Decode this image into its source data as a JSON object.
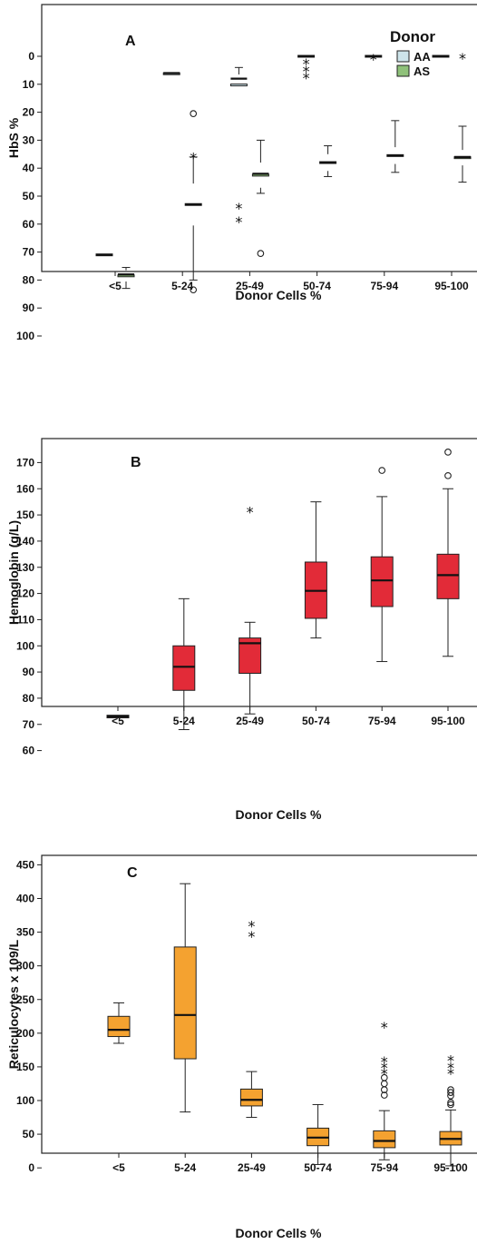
{
  "chart_data": [
    {
      "panel": "A",
      "type": "boxplot",
      "xlabel": "Donor Cells %",
      "ylabel": "HbS %",
      "ylim": [
        0,
        100
      ],
      "yticks": [
        0,
        10,
        20,
        30,
        40,
        50,
        60,
        70,
        80,
        90,
        100
      ],
      "categories": [
        "<5",
        "5-24",
        "25-49",
        "50-74",
        "75-94",
        "95-100"
      ],
      "legend": {
        "title": "Donor",
        "placement": "top-right"
      },
      "series": [
        {
          "name": "AA",
          "color": "#cde4ea",
          "boxes": [
            {
              "category": "<5",
              "low": 70.5,
              "q1": 70.5,
              "median": 71,
              "q3": 71.5,
              "high": 71.5,
              "outliers": []
            },
            {
              "category": "5-24",
              "low": 5.5,
              "q1": 5.5,
              "median": 6,
              "q3": 7,
              "high": 7,
              "outliers": []
            },
            {
              "category": "25-49",
              "low": 4,
              "q1": 6.5,
              "median": 8,
              "q3": 14,
              "high": 14,
              "outliers": [
                {
                  "value": 53.5,
                  "symbol": "*"
                },
                {
                  "value": 58.5,
                  "symbol": "*"
                }
              ]
            },
            {
              "category": "50-74",
              "low": 0,
              "q1": 0,
              "median": 0,
              "q3": 0,
              "high": 0,
              "outliers": [
                {
                  "value": 2,
                  "symbol": "*"
                },
                {
                  "value": 4.5,
                  "symbol": "*"
                },
                {
                  "value": 7,
                  "symbol": "*"
                }
              ]
            },
            {
              "category": "75-94",
              "low": 0,
              "q1": 0,
              "median": 0,
              "q3": 0,
              "high": 0,
              "outliers": [
                {
                  "value": 0.3,
                  "symbol": "*"
                }
              ]
            },
            {
              "category": "95-100",
              "low": 0,
              "q1": 0,
              "median": 0,
              "q3": 0,
              "high": 0,
              "outliers": []
            }
          ]
        },
        {
          "name": "AS",
          "color": "#8fc17a",
          "boxes": [
            {
              "category": "<5",
              "low": 75.5,
              "q1": 76.5,
              "median": 78,
              "q3": 80.5,
              "high": 83,
              "outliers": []
            },
            {
              "category": "5-24",
              "low": 36,
              "q1": 45.5,
              "median": 53,
              "q3": 60.5,
              "high": 80,
              "outliers": [
                {
                  "value": 35.5,
                  "symbol": "*"
                },
                {
                  "value": 83.5,
                  "symbol": "o"
                },
                {
                  "value": 20.5,
                  "symbol": "o"
                }
              ]
            },
            {
              "category": "25-49",
              "low": 30,
              "q1": 38,
              "median": 42,
              "q3": 47,
              "high": 49,
              "outliers": [
                {
                  "value": 70.5,
                  "symbol": "o"
                }
              ]
            },
            {
              "category": "50-74",
              "low": 32,
              "q1": 35,
              "median": 38,
              "q3": 41,
              "high": 43,
              "outliers": []
            },
            {
              "category": "75-94",
              "low": 23,
              "q1": 32.5,
              "median": 35.5,
              "q3": 38.5,
              "high": 41.5,
              "outliers": []
            },
            {
              "category": "95-100",
              "low": 25,
              "q1": 33.5,
              "median": 36,
              "q3": 39,
              "high": 45,
              "outliers": [
                {
                  "value": 0,
                  "symbol": "*"
                }
              ]
            }
          ]
        }
      ]
    },
    {
      "panel": "B",
      "type": "boxplot",
      "xlabel": "Donor Cells %",
      "ylabel": "Hemoglobin (g/L)",
      "ylim": [
        55,
        175
      ],
      "yticks": [
        60,
        70,
        80,
        90,
        100,
        110,
        120,
        130,
        140,
        150,
        160,
        170
      ],
      "categories": [
        "<5",
        "5-24",
        "25-49",
        "50-74",
        "75-94",
        "95-100"
      ],
      "series": [
        {
          "name": "",
          "color": "#e22b38",
          "boxes": [
            {
              "category": "<5",
              "low": 72.5,
              "q1": 72.5,
              "median": 73,
              "q3": 73.5,
              "high": 73.5,
              "outliers": []
            },
            {
              "category": "5-24",
              "low": 68,
              "q1": 83,
              "median": 92,
              "q3": 100,
              "high": 118,
              "outliers": []
            },
            {
              "category": "25-49",
              "low": 74,
              "q1": 89.5,
              "median": 101,
              "q3": 103,
              "high": 109,
              "outliers": [
                {
                  "value": 152,
                  "symbol": "*"
                }
              ]
            },
            {
              "category": "50-74",
              "low": 103,
              "q1": 110.5,
              "median": 121,
              "q3": 132,
              "high": 155,
              "outliers": []
            },
            {
              "category": "75-94",
              "low": 94,
              "q1": 115,
              "median": 125,
              "q3": 134,
              "high": 157,
              "outliers": [
                {
                  "value": 167,
                  "symbol": "o"
                }
              ]
            },
            {
              "category": "95-100",
              "low": 96,
              "q1": 118,
              "median": 127,
              "q3": 135,
              "high": 160,
              "outliers": [
                {
                  "value": 165,
                  "symbol": "o"
                },
                {
                  "value": 174,
                  "symbol": "o"
                }
              ]
            }
          ]
        }
      ]
    },
    {
      "panel": "C",
      "type": "boxplot",
      "xlabel": "Donor Cells %",
      "ylabel": "Reticulocytes x 109/L",
      "ylim": [
        -20,
        460
      ],
      "yticks": [
        0,
        50,
        100,
        150,
        200,
        250,
        300,
        350,
        400,
        450
      ],
      "categories": [
        "<5",
        "5-24",
        "25-49",
        "50-74",
        "75-94",
        "95-100"
      ],
      "series": [
        {
          "name": "",
          "color": "#f4a230",
          "boxes": [
            {
              "category": "<5",
              "low": 185,
              "q1": 195,
              "median": 205,
              "q3": 225,
              "high": 245,
              "outliers": []
            },
            {
              "category": "5-24",
              "low": 83,
              "q1": 162,
              "median": 227,
              "q3": 328,
              "high": 422,
              "outliers": []
            },
            {
              "category": "25-49",
              "low": 75,
              "q1": 92,
              "median": 101,
              "q3": 117,
              "high": 143,
              "outliers": [
                {
                  "value": 347,
                  "symbol": "*"
                },
                {
                  "value": 362,
                  "symbol": "*"
                }
              ]
            },
            {
              "category": "50-74",
              "low": 5,
              "q1": 33,
              "median": 45,
              "q3": 59,
              "high": 94,
              "outliers": []
            },
            {
              "category": "75-94",
              "low": 12,
              "q1": 30,
              "median": 40,
              "q3": 55,
              "high": 85,
              "outliers": [
                {
                  "value": 108,
                  "symbol": "o"
                },
                {
                  "value": 116,
                  "symbol": "o"
                },
                {
                  "value": 125,
                  "symbol": "o"
                },
                {
                  "value": 134,
                  "symbol": "o"
                },
                {
                  "value": 143,
                  "symbol": "*"
                },
                {
                  "value": 152,
                  "symbol": "*"
                },
                {
                  "value": 161,
                  "symbol": "*"
                },
                {
                  "value": 212,
                  "symbol": "*"
                }
              ]
            },
            {
              "category": "95-100",
              "low": 3,
              "q1": 34,
              "median": 43,
              "q3": 54,
              "high": 86,
              "outliers": [
                {
                  "value": 94,
                  "symbol": "o"
                },
                {
                  "value": 97,
                  "symbol": "o"
                },
                {
                  "value": 107,
                  "symbol": "o"
                },
                {
                  "value": 112,
                  "symbol": "o"
                },
                {
                  "value": 116,
                  "symbol": "o"
                },
                {
                  "value": 143,
                  "symbol": "*"
                },
                {
                  "value": 152,
                  "symbol": "*"
                },
                {
                  "value": 163,
                  "symbol": "*"
                }
              ]
            }
          ]
        }
      ]
    }
  ]
}
